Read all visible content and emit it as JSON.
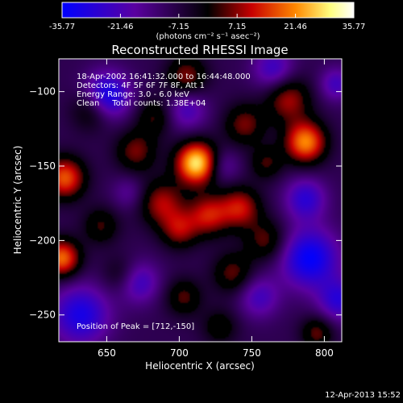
{
  "colorbar": {
    "tick_labels": [
      "-35.77",
      "-21.46",
      "-7.15",
      "7.15",
      "21.46",
      "35.77"
    ],
    "range": [
      -35.77,
      35.77
    ],
    "unit_label": "(photons cm⁻² s⁻¹ asec⁻²)"
  },
  "chart_data": {
    "type": "heatmap",
    "title": "Reconstructed RHESSI Image",
    "xlabel": "Heliocentric X (arcsec)",
    "ylabel": "Heliocentric Y (arcsec)",
    "x_ticks": [
      650,
      700,
      750,
      800
    ],
    "y_ticks": [
      -100,
      -150,
      -200,
      -250
    ],
    "xlim": [
      617,
      812
    ],
    "ylim": [
      -268,
      -78
    ],
    "annotations": [
      "18-Apr-2002 16:41:32.000 to 16:44:48.000",
      "Detectors: 4F 5F 6F 7F 8F, Att 1",
      "Energy Range: 3.0 - 6.0 keV",
      "Clean     Total counts: 1.38E+04"
    ],
    "peak_label": "Position of Peak = [712,-150]",
    "peak": [
      712,
      -150
    ],
    "sources": [
      {
        "x": 712,
        "y": -148,
        "a": 38,
        "s": 10
      },
      {
        "x": 787,
        "y": -134,
        "a": 30,
        "s": 10
      },
      {
        "x": 775,
        "y": -105,
        "a": 18,
        "s": 11
      },
      {
        "x": 621,
        "y": -158,
        "a": 26,
        "s": 10
      },
      {
        "x": 619,
        "y": -212,
        "a": 28,
        "s": 9
      },
      {
        "x": 670,
        "y": -140,
        "a": 15,
        "s": 10
      },
      {
        "x": 688,
        "y": -175,
        "a": 18,
        "s": 11
      },
      {
        "x": 720,
        "y": -183,
        "a": 20,
        "s": 10
      },
      {
        "x": 742,
        "y": -178,
        "a": 20,
        "s": 10
      },
      {
        "x": 700,
        "y": -193,
        "a": 16,
        "s": 9
      },
      {
        "x": 760,
        "y": -200,
        "a": 14,
        "s": 10
      },
      {
        "x": 737,
        "y": -222,
        "a": 14,
        "s": 10
      },
      {
        "x": 703,
        "y": -238,
        "a": 13,
        "s": 9
      },
      {
        "x": 728,
        "y": -258,
        "a": 10,
        "s": 9
      },
      {
        "x": 745,
        "y": -122,
        "a": 15,
        "s": 10
      },
      {
        "x": 760,
        "y": -148,
        "a": 12,
        "s": 8
      },
      {
        "x": 705,
        "y": -90,
        "a": 16,
        "s": 10
      },
      {
        "x": 683,
        "y": -117,
        "a": 12,
        "s": 9
      },
      {
        "x": 640,
        "y": -112,
        "a": 14,
        "s": 10
      },
      {
        "x": 660,
        "y": -223,
        "a": 9,
        "s": 9
      },
      {
        "x": 795,
        "y": -262,
        "a": 14,
        "s": 8
      },
      {
        "x": 646,
        "y": -190,
        "a": 12,
        "s": 9
      },
      {
        "x": 650,
        "y": -103,
        "a": -26,
        "s": 11
      },
      {
        "x": 632,
        "y": -250,
        "a": -22,
        "s": 14
      },
      {
        "x": 790,
        "y": -212,
        "a": -26,
        "s": 14
      },
      {
        "x": 787,
        "y": -172,
        "a": -18,
        "s": 10
      },
      {
        "x": 810,
        "y": -240,
        "a": -18,
        "s": 10
      },
      {
        "x": 672,
        "y": -228,
        "a": -16,
        "s": 10
      },
      {
        "x": 755,
        "y": -238,
        "a": -14,
        "s": 10
      },
      {
        "x": 705,
        "y": -112,
        "a": -14,
        "s": 10
      },
      {
        "x": 765,
        "y": -85,
        "a": -16,
        "s": 10
      },
      {
        "x": 730,
        "y": -150,
        "a": -10,
        "s": 8
      },
      {
        "x": 665,
        "y": -168,
        "a": -8,
        "s": 8
      },
      {
        "x": 808,
        "y": -95,
        "a": -14,
        "s": 8
      }
    ],
    "colormap": [
      "#0000ff",
      "#5a00a0",
      "#000000",
      "#c80000",
      "#ff8800",
      "#ffff80",
      "#ffffff"
    ]
  },
  "timestamp": "12-Apr-2013 15:52"
}
